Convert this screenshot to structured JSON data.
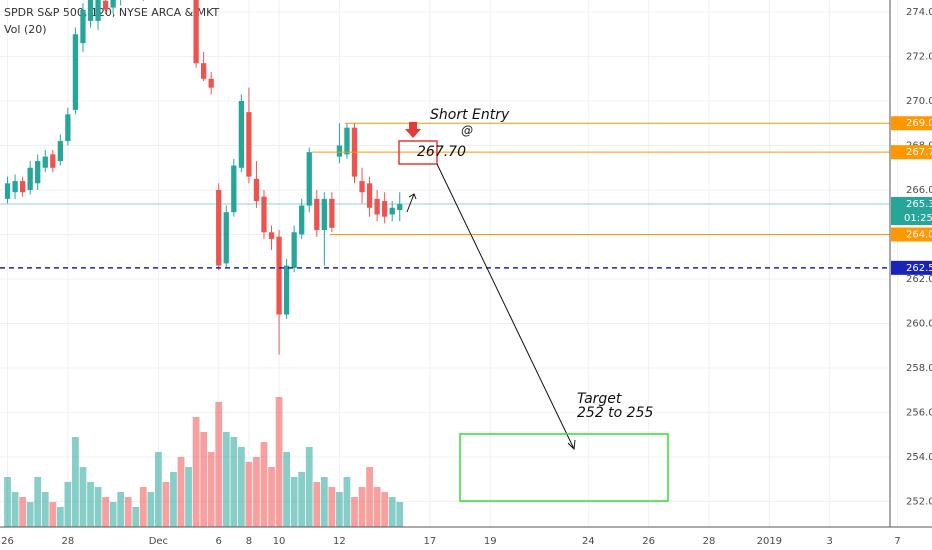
{
  "chart_data": {
    "type": "candlestick",
    "title": "SPDR S&P 500, 120, NYSE ARCA & MKT",
    "indicator": "Vol (20)",
    "x": [
      0,
      1,
      2,
      3,
      4,
      5,
      6,
      7,
      8,
      9,
      10,
      11,
      12,
      13,
      14,
      15,
      16,
      17,
      18,
      19,
      20,
      21,
      22,
      23,
      24,
      25,
      26,
      27,
      28,
      29,
      30,
      31,
      32,
      33,
      34,
      35,
      36,
      37,
      38,
      39,
      40,
      41,
      42,
      43,
      44,
      45,
      46,
      47,
      48,
      49,
      50,
      51,
      52
    ],
    "open": [
      265.6,
      265.9,
      266.4,
      266.0,
      266.3,
      267.0,
      267.6,
      267.3,
      268.2,
      269.6,
      272.6,
      273.6,
      273.6,
      274.5,
      274.2,
      274.6,
      275.2,
      275.0,
      275.3,
      274.8,
      278.5,
      279.0,
      278.4,
      278.8,
      277.9,
      277.0,
      271.7,
      271.0,
      266.0,
      262.7,
      265.0,
      267.0,
      269.5,
      266.5,
      265.7,
      264.1,
      263.9,
      260.4,
      262.5,
      264.0,
      265.3,
      265.6,
      264.2,
      265.6,
      267.5,
      267.6,
      268.8,
      266.4,
      266.3,
      265.6,
      265.5,
      264.9,
      265.1
    ],
    "high": [
      266.6,
      266.7,
      266.6,
      267.3,
      267.6,
      267.8,
      267.8,
      268.5,
      269.7,
      273.3,
      274.4,
      275.2,
      275.0,
      274.9,
      275.0,
      275.5,
      275.5,
      275.7,
      275.5,
      275.6,
      279.4,
      279.3,
      279.1,
      279.0,
      278.5,
      277.3,
      272.2,
      271.3,
      266.3,
      265.3,
      267.4,
      270.3,
      270.6,
      267.3,
      266.0,
      264.4,
      264.2,
      262.9,
      264.4,
      265.6,
      267.9,
      266.0,
      265.9,
      265.9,
      269.0,
      269.0,
      269.0,
      267.0,
      266.6,
      266.0,
      265.9,
      265.5,
      265.9
    ],
    "low": [
      265.4,
      265.6,
      265.7,
      265.8,
      266.0,
      266.8,
      266.8,
      267.1,
      268.0,
      269.4,
      272.2,
      273.3,
      273.2,
      273.9,
      273.9,
      274.3,
      274.7,
      274.8,
      274.5,
      274.6,
      278.0,
      278.1,
      278.0,
      277.6,
      277.4,
      271.5,
      270.9,
      270.3,
      262.4,
      262.5,
      264.8,
      266.8,
      266.3,
      265.2,
      263.8,
      263.3,
      258.6,
      260.2,
      262.3,
      263.8,
      265.0,
      263.9,
      262.6,
      264.1,
      267.2,
      267.4,
      266.3,
      265.4,
      264.8,
      264.6,
      264.5,
      264.6,
      264.6
    ],
    "close": [
      266.3,
      266.4,
      265.9,
      267.0,
      267.3,
      267.5,
      267.0,
      268.2,
      269.4,
      273.0,
      274.1,
      274.8,
      274.6,
      274.1,
      274.6,
      275.2,
      275.0,
      275.4,
      274.8,
      275.3,
      279.0,
      278.4,
      278.8,
      277.9,
      278.2,
      271.7,
      271.0,
      270.6,
      262.6,
      265.0,
      267.1,
      270.0,
      266.6,
      265.5,
      264.1,
      263.8,
      260.4,
      262.6,
      264.1,
      265.3,
      267.7,
      264.2,
      265.6,
      264.3,
      268.0,
      268.8,
      266.6,
      265.9,
      265.2,
      264.9,
      264.8,
      265.2,
      265.37
    ],
    "volume": [
      50,
      35,
      30,
      25,
      50,
      35,
      25,
      20,
      45,
      90,
      60,
      45,
      40,
      30,
      25,
      35,
      30,
      20,
      40,
      35,
      75,
      45,
      55,
      70,
      60,
      110,
      95,
      75,
      125,
      95,
      90,
      80,
      65,
      70,
      85,
      60,
      130,
      75,
      50,
      55,
      80,
      45,
      50,
      40,
      35,
      50,
      30,
      40,
      60,
      40,
      35,
      30,
      25
    ],
    "volume_lim": [
      0,
      250
    ],
    "up_color": "#26a69a",
    "down_color": "#ef5350",
    "xlim": [
      -1,
      117
    ],
    "xticks": [
      {
        "value": 0,
        "label": "26"
      },
      {
        "value": 8,
        "label": "28"
      },
      {
        "value": 20,
        "label": "Dec"
      },
      {
        "value": 28,
        "label": "6"
      },
      {
        "value": 32,
        "label": "8"
      },
      {
        "value": 36,
        "label": "10"
      },
      {
        "value": 44,
        "label": "12"
      },
      {
        "value": 56,
        "label": "17"
      },
      {
        "value": 64,
        "label": "19"
      },
      {
        "value": 77,
        "label": "24"
      },
      {
        "value": 85,
        "label": "26"
      },
      {
        "value": 93,
        "label": "28"
      },
      {
        "value": 101,
        "label": "2019"
      },
      {
        "value": 109,
        "label": "3"
      },
      {
        "value": 118,
        "label": "7"
      }
    ],
    "ylim": [
      250.85,
      274.54
    ],
    "yticks": [
      {
        "value": 252,
        "label": "252.00"
      },
      {
        "value": 254,
        "label": "254.00"
      },
      {
        "value": 256,
        "label": "256.00"
      },
      {
        "value": 258,
        "label": "258.00"
      },
      {
        "value": 260,
        "label": "260.00"
      },
      {
        "value": 262,
        "label": "262.00"
      },
      {
        "value": 264,
        "label": "264.00"
      },
      {
        "value": 266,
        "label": "266.00"
      },
      {
        "value": 268,
        "label": "268.00"
      },
      {
        "value": 270,
        "label": "270.00"
      },
      {
        "value": 272,
        "label": "272.00"
      },
      {
        "value": 274,
        "label": "274.00"
      }
    ],
    "grid": true,
    "price_lines": [
      {
        "value": 269,
        "label": "269.00",
        "color": "#ff9800",
        "style": "solid"
      },
      {
        "value": 267.7,
        "label": "267.70",
        "color": "#ff9800",
        "style": "solid"
      },
      {
        "value": 264,
        "label": "264.00",
        "color": "#ff9800",
        "style": "solid"
      },
      {
        "value": 265.37,
        "label": "265.37",
        "color": "#26a69a",
        "style": "solid"
      },
      {
        "value": 262.5,
        "label": "262.50",
        "color": "#1a23b8",
        "style": "dashed"
      }
    ],
    "countdown": "01:25:55",
    "annotations": {
      "short_entry": "Short Entry",
      "at": "@",
      "entry_price": "267.70",
      "target": "Target",
      "target_range": "252 to 255"
    }
  }
}
